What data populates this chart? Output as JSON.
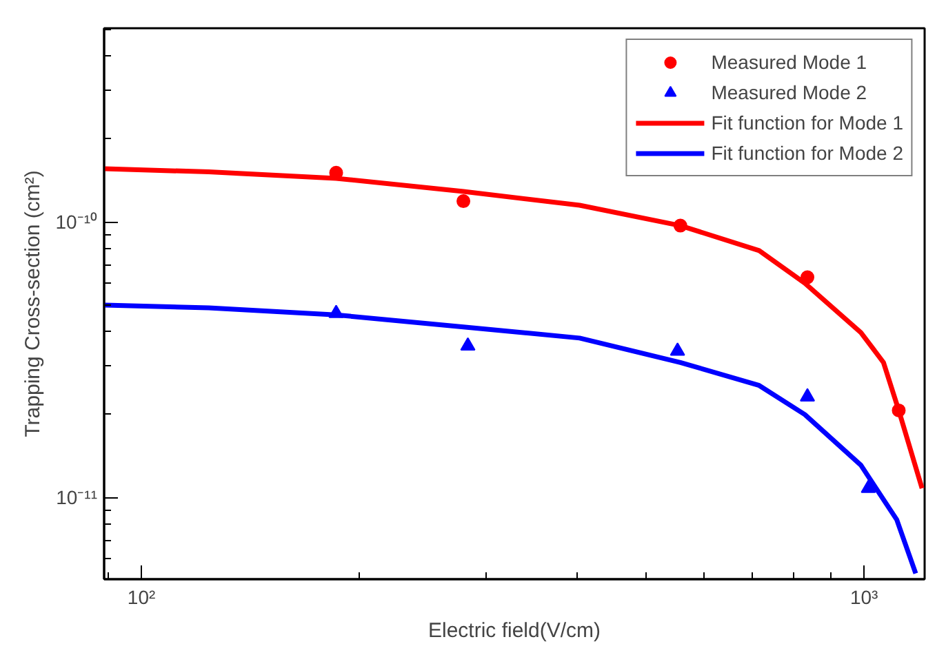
{
  "chart_data": {
    "type": "scatter",
    "xlabel": "Electric field(V/cm)",
    "ylabel": "Trapping Cross-section (cm²)",
    "log": "xy",
    "xlim": [
      88.8,
      1213
    ],
    "ylim": [
      5.05e-12,
      5.05e-10
    ],
    "xticks": [
      {
        "value": 100,
        "label": "10²"
      },
      {
        "value": 1000,
        "label": "10³"
      }
    ],
    "yticks": [
      {
        "value": 1e-11,
        "label": "10⁻¹¹"
      },
      {
        "value": 1e-10,
        "label": "10⁻¹⁰"
      }
    ],
    "grid": false,
    "legend": "top right",
    "series": [
      {
        "name": "Measured Mode 1",
        "marker": "circle",
        "color": "#ff0000",
        "x": [
          186,
          279,
          557,
          835,
          1117
        ],
        "values": [
          1.51e-10,
          1.19e-10,
          9.7e-11,
          6.3e-11,
          2.07e-11
        ]
      },
      {
        "name": "Measured Mode 2",
        "marker": "triangle",
        "color": "#0000ff",
        "x": [
          186,
          283,
          552,
          835,
          1014
        ],
        "values": [
          4.66e-11,
          3.55e-11,
          3.4e-11,
          2.32e-11,
          1.08e-11
        ]
      },
      {
        "name": "Fit function for Mode 1",
        "type": "line",
        "color": "#ff0000",
        "x": [
          89,
          124,
          186,
          279,
          404,
          557,
          716,
          828,
          990,
          1064,
          1117,
          1203
        ],
        "values": [
          1.56e-10,
          1.52e-10,
          1.44e-10,
          1.29e-10,
          1.15e-10,
          9.7e-11,
          7.87e-11,
          6e-11,
          3.97e-11,
          3.09e-11,
          2.07e-11,
          1.08e-11
        ]
      },
      {
        "name": "Fit function for Mode 2",
        "type": "line",
        "color": "#0000ff",
        "x": [
          89,
          124,
          186,
          279,
          404,
          557,
          716,
          828,
          990,
          1110,
          1179
        ],
        "values": [
          4.99e-11,
          4.88e-11,
          4.6e-11,
          4.16e-11,
          3.79e-11,
          3.09e-11,
          2.55e-11,
          2e-11,
          1.31e-11,
          8.3e-12,
          5.3e-12
        ]
      }
    ]
  }
}
